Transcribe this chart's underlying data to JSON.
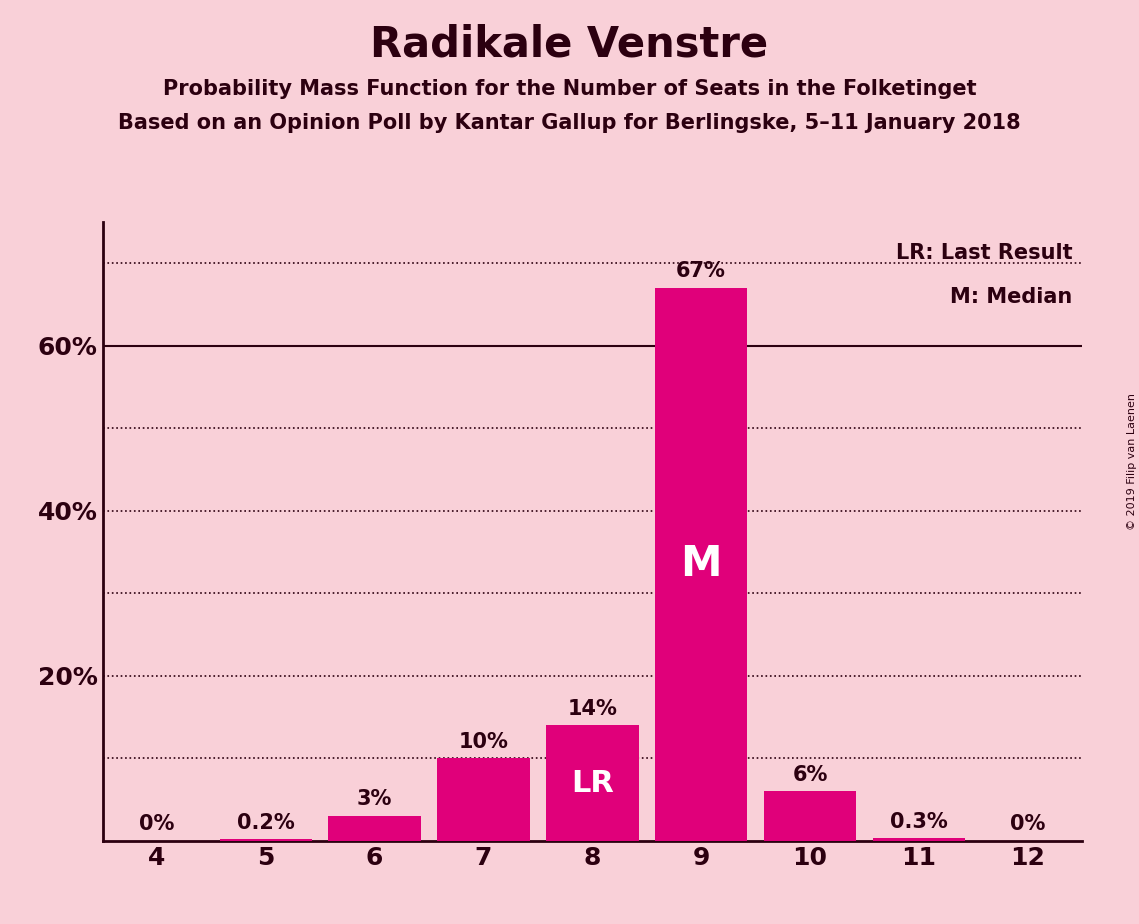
{
  "title": "Radikale Venstre",
  "subtitle1": "Probability Mass Function for the Number of Seats in the Folketinget",
  "subtitle2": "Based on an Opinion Poll by Kantar Gallup for Berlingske, 5–11 January 2018",
  "copyright": "© 2019 Filip van Laenen",
  "seats": [
    4,
    5,
    6,
    7,
    8,
    9,
    10,
    11,
    12
  ],
  "probabilities": [
    0.0,
    0.2,
    3.0,
    10.0,
    14.0,
    67.0,
    6.0,
    0.3,
    0.0
  ],
  "labels": [
    "0%",
    "0.2%",
    "3%",
    "10%",
    "14%",
    "67%",
    "6%",
    "0.3%",
    "0%"
  ],
  "bar_color": "#e0007a",
  "background_color": "#f9d0d8",
  "text_color": "#2c0010",
  "median_seat": 9,
  "lr_seat": 8,
  "median_label": "M",
  "lr_label": "LR",
  "ylim": [
    0,
    75
  ],
  "legend_lr": "LR: Last Result",
  "legend_m": "M: Median",
  "solid_grid_y": [
    60
  ],
  "dotted_grid_y": [
    10,
    20,
    30,
    40,
    50,
    70
  ],
  "ytick_positions": [
    20,
    40,
    60
  ],
  "ytick_labels": [
    "20%",
    "40%",
    "60%"
  ]
}
